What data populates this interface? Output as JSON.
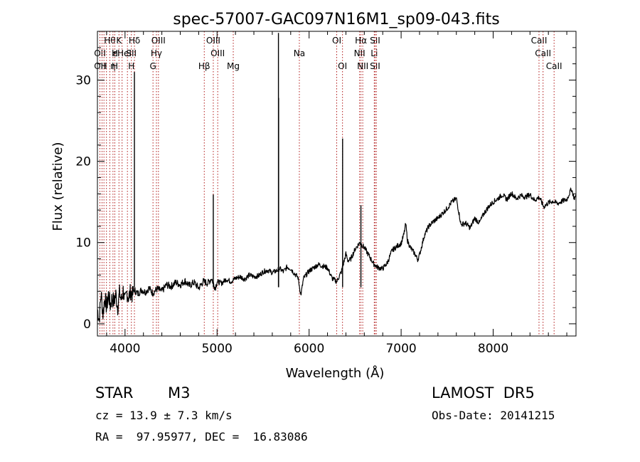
{
  "chart_data": {
    "type": "line",
    "title": "spec-57007-GAC097N16M1_sp09-043.fits",
    "xlabel": "Wavelength (Å)",
    "ylabel": "Flux (relative)",
    "xlim": [
      3700,
      8900
    ],
    "ylim": [
      -1.5,
      36
    ],
    "xticks": [
      4000,
      5000,
      6000,
      7000,
      8000
    ],
    "yticks": [
      0,
      10,
      20,
      30
    ],
    "grid": false,
    "legend": "none",
    "series": [
      {
        "color": "#000000",
        "points": [
          [
            3700,
            1.8
          ],
          [
            3720,
            0.5
          ],
          [
            3740,
            3.8
          ],
          [
            3760,
            1.2
          ],
          [
            3780,
            3.3
          ],
          [
            3800,
            2.0
          ],
          [
            3820,
            3.6
          ],
          [
            3840,
            2.3
          ],
          [
            3860,
            3.2
          ],
          [
            3880,
            2.7
          ],
          [
            3900,
            3.6
          ],
          [
            3920,
            2.0
          ],
          [
            3940,
            3.8
          ],
          [
            3960,
            2.9
          ],
          [
            3980,
            4.1
          ],
          [
            4000,
            2.6
          ],
          [
            4020,
            3.9
          ],
          [
            4040,
            3.2
          ],
          [
            4060,
            4.0
          ],
          [
            4080,
            3.5
          ],
          [
            4100,
            4.2
          ],
          [
            4140,
            3.7
          ],
          [
            4180,
            4.2
          ],
          [
            4220,
            3.9
          ],
          [
            4260,
            4.4
          ],
          [
            4300,
            3.8
          ],
          [
            4350,
            4.3
          ],
          [
            4400,
            4.0
          ],
          [
            4450,
            4.8
          ],
          [
            4500,
            4.6
          ],
          [
            4550,
            5.1
          ],
          [
            4600,
            4.8
          ],
          [
            4650,
            5.3
          ],
          [
            4700,
            4.7
          ],
          [
            4750,
            5.1
          ],
          [
            4800,
            4.4
          ],
          [
            4850,
            5.2
          ],
          [
            4900,
            5.0
          ],
          [
            4940,
            5.6
          ],
          [
            4980,
            4.4
          ],
          [
            5000,
            5.2
          ],
          [
            5050,
            5.0
          ],
          [
            5100,
            5.5
          ],
          [
            5150,
            5.2
          ],
          [
            5200,
            5.6
          ],
          [
            5250,
            5.8
          ],
          [
            5300,
            5.5
          ],
          [
            5350,
            6.0
          ],
          [
            5400,
            5.8
          ],
          [
            5450,
            5.9
          ],
          [
            5500,
            6.4
          ],
          [
            5550,
            6.6
          ],
          [
            5600,
            6.3
          ],
          [
            5640,
            6.5
          ],
          [
            5680,
            6.8
          ],
          [
            5720,
            6.4
          ],
          [
            5760,
            7.0
          ],
          [
            5800,
            6.8
          ],
          [
            5840,
            6.2
          ],
          [
            5880,
            5.7
          ],
          [
            5910,
            3.5
          ],
          [
            5940,
            5.6
          ],
          [
            6000,
            6.5
          ],
          [
            6050,
            6.9
          ],
          [
            6100,
            7.3
          ],
          [
            6150,
            7.1
          ],
          [
            6200,
            6.9
          ],
          [
            6250,
            5.6
          ],
          [
            6300,
            5.2
          ],
          [
            6350,
            6.4
          ],
          [
            6400,
            8.6
          ],
          [
            6420,
            7.8
          ],
          [
            6450,
            7.9
          ],
          [
            6500,
            9.2
          ],
          [
            6550,
            10.0
          ],
          [
            6600,
            9.4
          ],
          [
            6650,
            8.4
          ],
          [
            6700,
            7.4
          ],
          [
            6750,
            6.9
          ],
          [
            6800,
            6.8
          ],
          [
            6850,
            7.5
          ],
          [
            6900,
            9.0
          ],
          [
            6950,
            9.5
          ],
          [
            7000,
            9.9
          ],
          [
            7030,
            11.0
          ],
          [
            7050,
            12.3
          ],
          [
            7070,
            10.2
          ],
          [
            7100,
            9.4
          ],
          [
            7150,
            8.6
          ],
          [
            7180,
            7.9
          ],
          [
            7200,
            8.5
          ],
          [
            7250,
            10.8
          ],
          [
            7300,
            12.0
          ],
          [
            7350,
            12.6
          ],
          [
            7400,
            13.0
          ],
          [
            7450,
            13.6
          ],
          [
            7500,
            14.2
          ],
          [
            7550,
            15.0
          ],
          [
            7600,
            15.4
          ],
          [
            7620,
            14.2
          ],
          [
            7650,
            12.2
          ],
          [
            7700,
            12.4
          ],
          [
            7750,
            11.8
          ],
          [
            7800,
            13.0
          ],
          [
            7850,
            12.4
          ],
          [
            7900,
            13.6
          ],
          [
            7950,
            14.4
          ],
          [
            8000,
            15.0
          ],
          [
            8050,
            15.4
          ],
          [
            8100,
            15.9
          ],
          [
            8150,
            15.3
          ],
          [
            8200,
            16.1
          ],
          [
            8250,
            15.4
          ],
          [
            8300,
            15.8
          ],
          [
            8350,
            15.6
          ],
          [
            8400,
            15.9
          ],
          [
            8450,
            15.2
          ],
          [
            8500,
            15.6
          ],
          [
            8550,
            14.4
          ],
          [
            8600,
            14.9
          ],
          [
            8650,
            15.1
          ],
          [
            8700,
            14.8
          ],
          [
            8750,
            15.1
          ],
          [
            8800,
            15.3
          ],
          [
            8850,
            16.6
          ],
          [
            8880,
            15.5
          ],
          [
            8900,
            15.6
          ]
        ]
      }
    ],
    "emission_spikes": [
      {
        "x": 4102,
        "peak": 31.0
      },
      {
        "x": 4959,
        "peak": 15.9
      },
      {
        "x": 5667,
        "peak": 35.8
      },
      {
        "x": 5669,
        "peak": 27.8
      },
      {
        "x": 6364,
        "peak": 22.8
      },
      {
        "x": 6563,
        "peak": 14.6
      }
    ],
    "line_markers": [
      {
        "x": 3727,
        "labels": [
          "",
          "OII",
          "OII"
        ]
      },
      {
        "x": 3750,
        "labels": [
          "",
          "",
          ""
        ]
      },
      {
        "x": 3771,
        "labels": [
          "",
          "",
          "H"
        ]
      },
      {
        "x": 3798,
        "labels": [
          "",
          "",
          ""
        ]
      },
      {
        "x": 3835,
        "labels": [
          "Hθ",
          "",
          ""
        ]
      },
      {
        "x": 3869,
        "labels": [
          "",
          "",
          "η"
        ]
      },
      {
        "x": 3889,
        "labels": [
          "",
          "H",
          "H"
        ]
      },
      {
        "x": 3934,
        "labels": [
          "K",
          "",
          ""
        ]
      },
      {
        "x": 3968,
        "labels": [
          "",
          "εHeI",
          ""
        ]
      },
      {
        "x": 4026,
        "labels": [
          "",
          "",
          ""
        ]
      },
      {
        "x": 4069,
        "labels": [
          "",
          "SII",
          "H"
        ]
      },
      {
        "x": 4102,
        "labels": [
          "Hδ",
          "",
          ""
        ]
      },
      {
        "x": 4304,
        "labels": [
          "",
          "",
          "G"
        ]
      },
      {
        "x": 4341,
        "labels": [
          "",
          "Hγ",
          ""
        ]
      },
      {
        "x": 4363,
        "labels": [
          "OIII",
          "",
          ""
        ]
      },
      {
        "x": 4861,
        "labels": [
          "",
          "",
          "Hβ"
        ]
      },
      {
        "x": 4959,
        "labels": [
          "OIII",
          "",
          ""
        ]
      },
      {
        "x": 5007,
        "labels": [
          "",
          "OIII",
          ""
        ]
      },
      {
        "x": 5176,
        "labels": [
          "",
          "",
          "Mg"
        ]
      },
      {
        "x": 5894,
        "labels": [
          "",
          "Na",
          ""
        ]
      },
      {
        "x": 6300,
        "labels": [
          "OI",
          "",
          ""
        ]
      },
      {
        "x": 6363,
        "labels": [
          "",
          "",
          "OI"
        ]
      },
      {
        "x": 6548,
        "labels": [
          "",
          "NII",
          ""
        ]
      },
      {
        "x": 6563,
        "labels": [
          "Hα",
          "",
          ""
        ]
      },
      {
        "x": 6583,
        "labels": [
          "",
          "",
          "NII"
        ]
      },
      {
        "x": 6708,
        "labels": [
          "",
          "Li",
          ""
        ]
      },
      {
        "x": 6717,
        "labels": [
          "SII",
          "",
          "SII"
        ]
      },
      {
        "x": 6731,
        "labels": [
          "",
          "",
          ""
        ]
      },
      {
        "x": 8498,
        "labels": [
          "CaII",
          "",
          ""
        ]
      },
      {
        "x": 8542,
        "labels": [
          "",
          "CaII",
          ""
        ]
      },
      {
        "x": 8662,
        "labels": [
          "",
          "",
          "CaII"
        ]
      }
    ]
  },
  "info": {
    "object_type": "STAR",
    "subclass": "M3",
    "survey": "LAMOST  DR5",
    "cz": "cz = 13.9 ± 7.3 km/s",
    "obs_date": "Obs-Date: 20141215",
    "coords": "RA =  97.95977, DEC =  16.83086"
  }
}
